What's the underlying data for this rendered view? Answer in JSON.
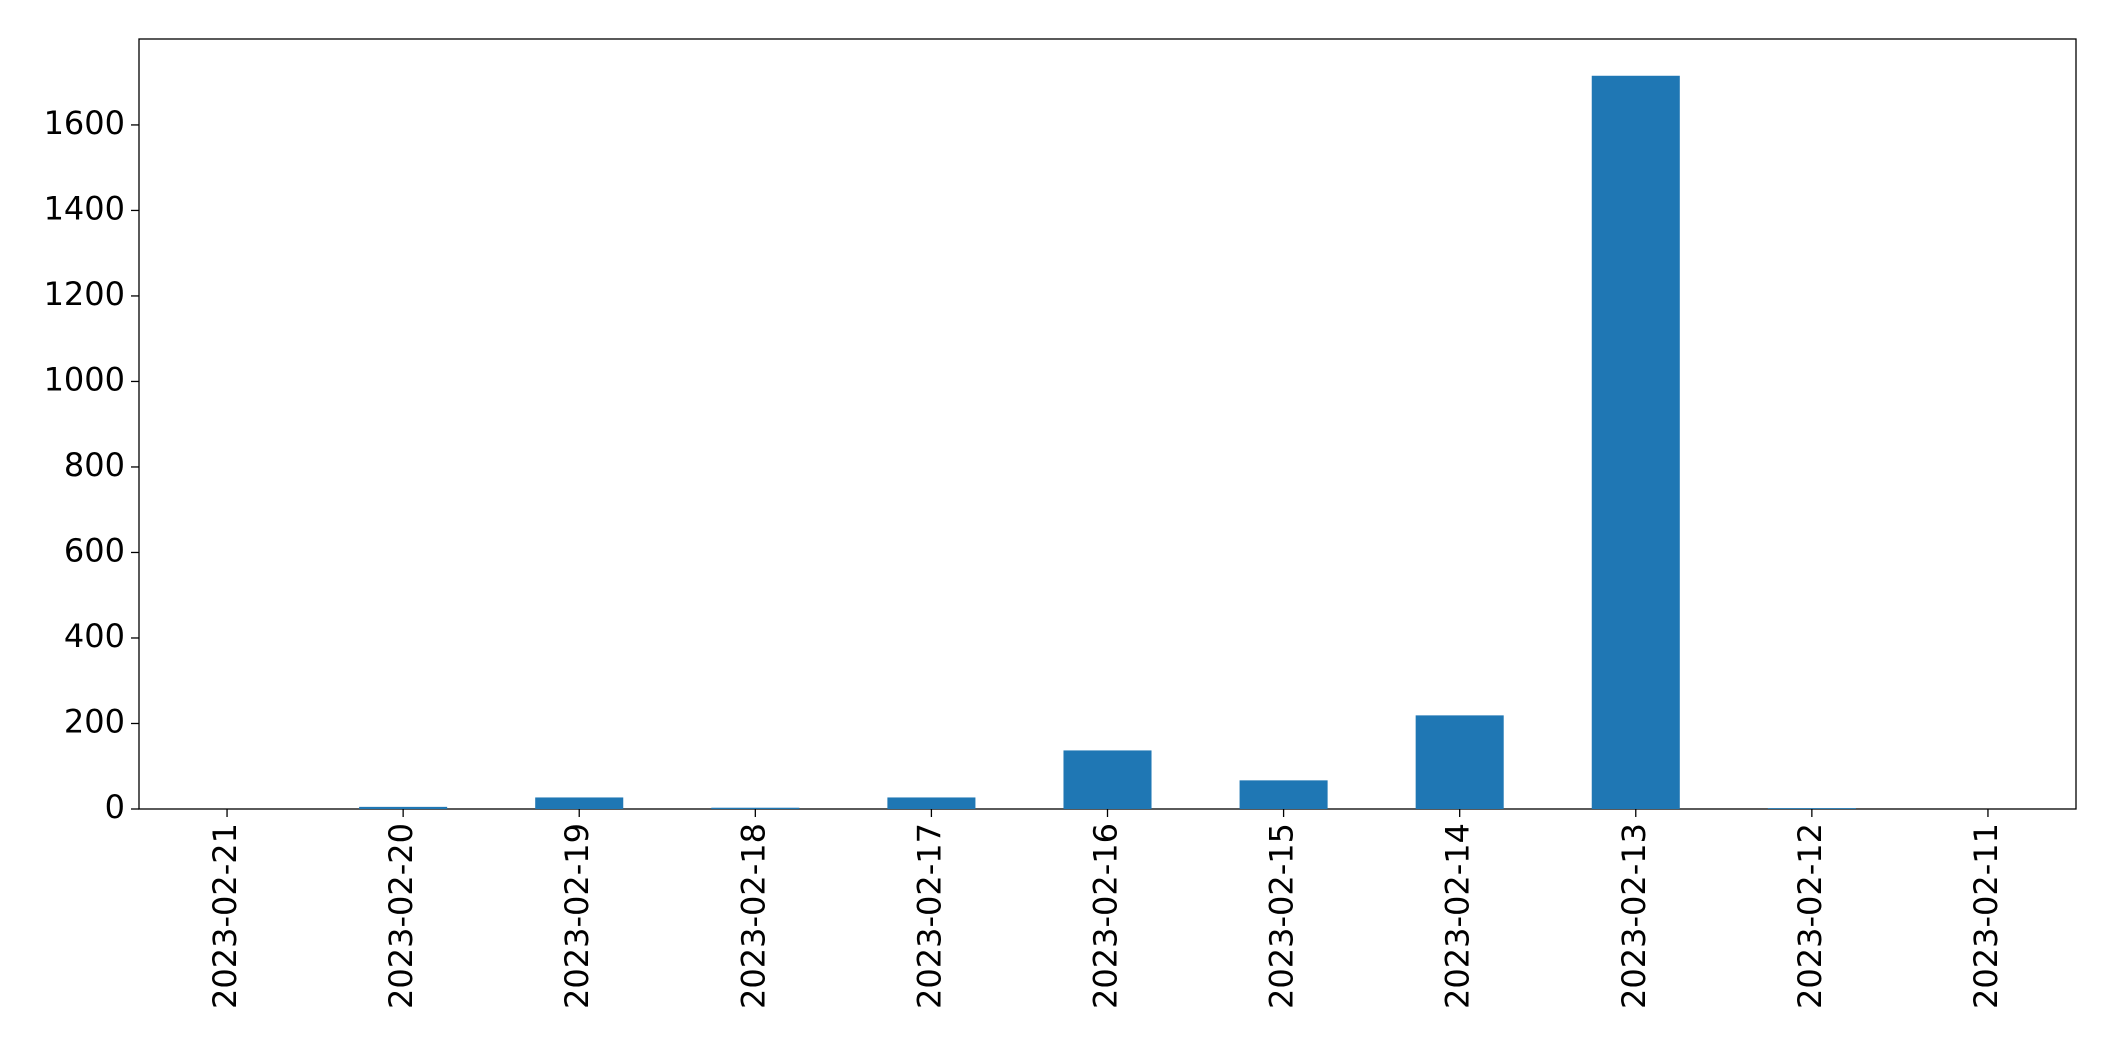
{
  "chart_data": {
    "type": "bar",
    "categories": [
      "2023-02-21",
      "2023-02-20",
      "2023-02-19",
      "2023-02-18",
      "2023-02-17",
      "2023-02-16",
      "2023-02-15",
      "2023-02-14",
      "2023-02-13",
      "2023-02-12",
      "2023-02-11"
    ],
    "values": [
      0,
      5,
      27,
      3,
      27,
      137,
      67,
      219,
      1715,
      2,
      0
    ],
    "color": "#1f77b4",
    "ylim": [
      0,
      1801
    ],
    "yticks": [
      0,
      200,
      400,
      600,
      800,
      1000,
      1200,
      1400,
      1600
    ],
    "grid": false
  }
}
